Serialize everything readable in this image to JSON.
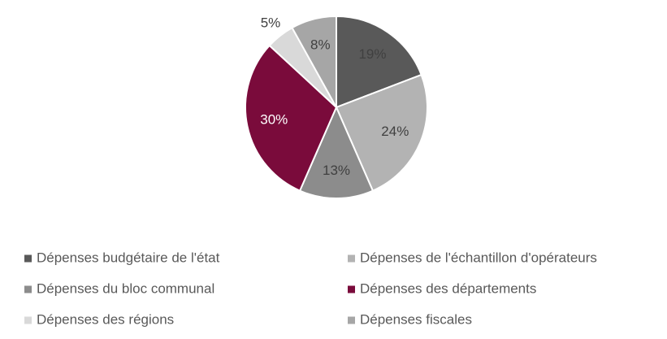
{
  "chart_data": {
    "type": "pie",
    "categories": [
      "Dépenses budgétaire de l'état",
      "Dépenses de l'échantillon d'opérateurs",
      "Dépenses du bloc communal",
      "Dépenses des départements",
      "Dépenses des régions",
      "Dépenses fiscales"
    ],
    "values": [
      19,
      24,
      13,
      30,
      5,
      8
    ],
    "value_labels": [
      "19%",
      "24%",
      "13%",
      "30%",
      "5%",
      "8%"
    ],
    "colors": [
      "#595959",
      "#b3b3b3",
      "#8c8c8c",
      "#7a0b3b",
      "#d9d9d9",
      "#a6a6a6"
    ],
    "legend": "bottom"
  }
}
